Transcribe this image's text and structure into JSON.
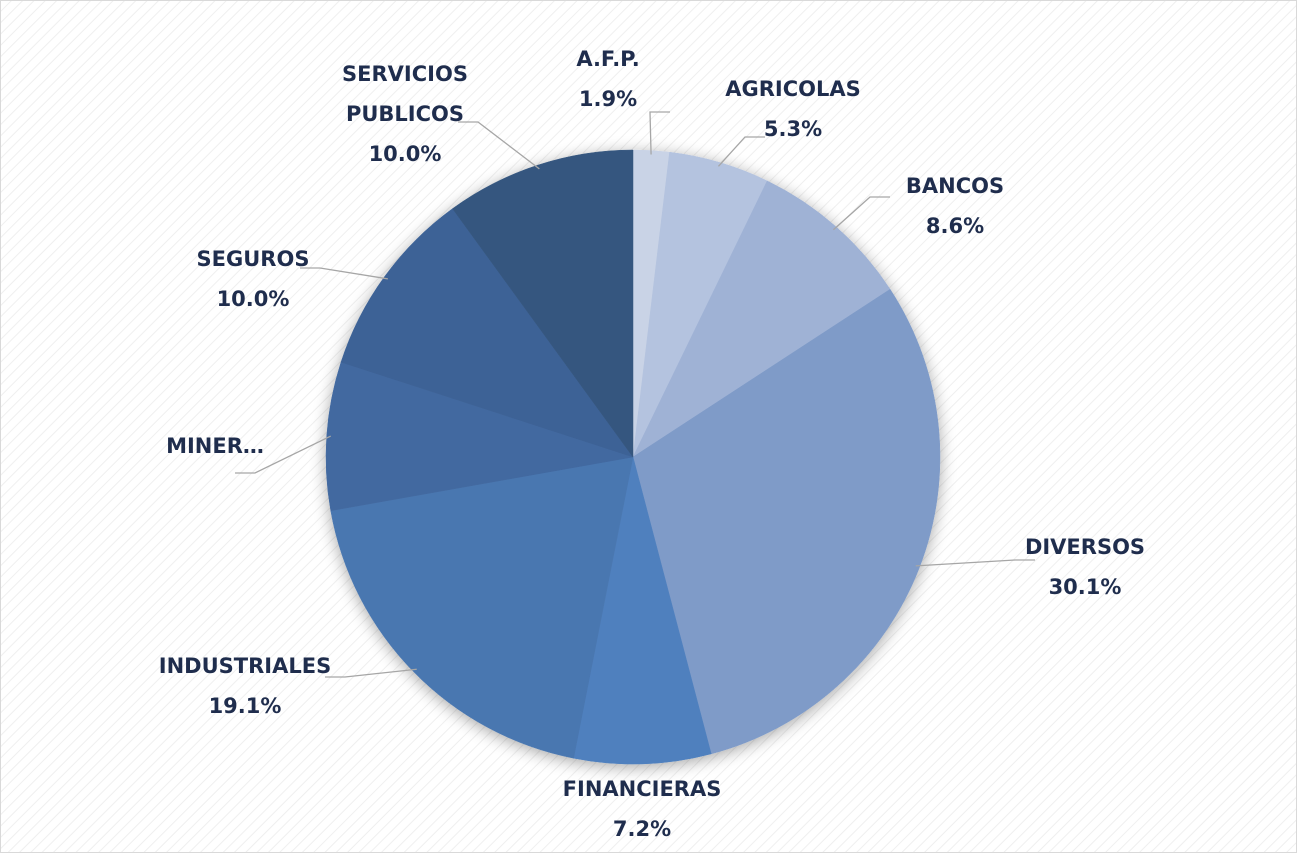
{
  "chart_data": {
    "type": "pie",
    "categories": [
      "A.F.P.",
      "AGRICOLAS",
      "BANCOS",
      "DIVERSOS",
      "FINANCIERAS",
      "INDUSTRIALES",
      "MINER…",
      "SEGUROS",
      "SERVICIOS PUBLICOS"
    ],
    "values": [
      1.9,
      5.3,
      8.6,
      30.1,
      7.2,
      19.1,
      7.8,
      10.0,
      10.0
    ],
    "value_labels": [
      "1.9%",
      "5.3%",
      "8.6%",
      "30.1%",
      "7.2%",
      "19.1%",
      null,
      "10.0%",
      "10.0%"
    ],
    "colors": [
      "#c9d3e6",
      "#b4c3df",
      "#9fb2d5",
      "#7f9bc8",
      "#4f80be",
      "#4a77b0",
      "#4269a0",
      "#3d6296",
      "#36577f"
    ]
  }
}
